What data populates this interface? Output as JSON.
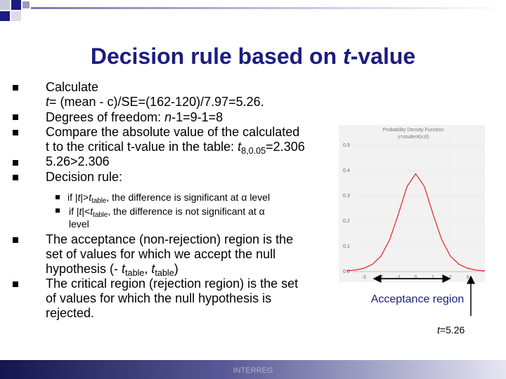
{
  "title": [
    "Decision rule based on ",
    "t",
    "-value"
  ],
  "bullets": [
    [
      "Calculate",
      "t",
      "= (mean - c)/SE=(162-120)/7.97=5.26."
    ],
    [
      "Degrees of freedom: ",
      "n",
      "-1=9-1=8"
    ],
    [
      "Compare the absolute value of the calculated",
      "t to the critical t-value in the table: ",
      "t",
      "8,0.05",
      "=2.306"
    ],
    [
      "5.26>2.306"
    ],
    [
      "Decision rule:"
    ],
    [
      "The acceptance (non-rejection) region is the",
      "set of values for which we accept the null",
      "hypothesis (- ",
      "t",
      "table",
      ", ",
      "t",
      "table",
      ")"
    ],
    [
      "The critical region (rejection region) is the set",
      "of values for which the null hypothesis is",
      "rejected."
    ]
  ],
  "sub_bullets": [
    [
      "if |",
      "t",
      "|>",
      "t",
      "table",
      ", the difference is significant at α level"
    ],
    [
      "if |",
      "t",
      "|<",
      "t",
      "table",
      ", the difference is not significant at α",
      "level"
    ]
  ],
  "chart": {
    "type": "line",
    "title": [
      "Probability Density Function",
      "y=student(x;8)"
    ],
    "x": [
      -4,
      -3.5,
      -3,
      -2.5,
      -2,
      -1.5,
      -1,
      -0.5,
      0,
      0.5,
      1,
      1.5,
      2,
      2.5,
      3,
      3.5,
      4
    ],
    "values": [
      0.003,
      0.006,
      0.013,
      0.029,
      0.062,
      0.127,
      0.228,
      0.337,
      0.387,
      0.337,
      0.228,
      0.127,
      0.062,
      0.029,
      0.013,
      0.006,
      0.003
    ],
    "color": "#e03030",
    "xlim": [
      -4,
      4
    ],
    "ylim": [
      0,
      0.55
    ],
    "xticks": [
      -3,
      -2,
      -1,
      0,
      1,
      2,
      3
    ],
    "yticks": [
      {
        "value": 0,
        "label": "0.0"
      },
      0.1,
      0.2,
      0.3,
      0.4,
      0.5
    ],
    "grid": true
  },
  "annotations": {
    "acceptance": "Acceptance region",
    "t_value": [
      "t",
      "=5.26"
    ]
  },
  "footer": "INTERREG"
}
